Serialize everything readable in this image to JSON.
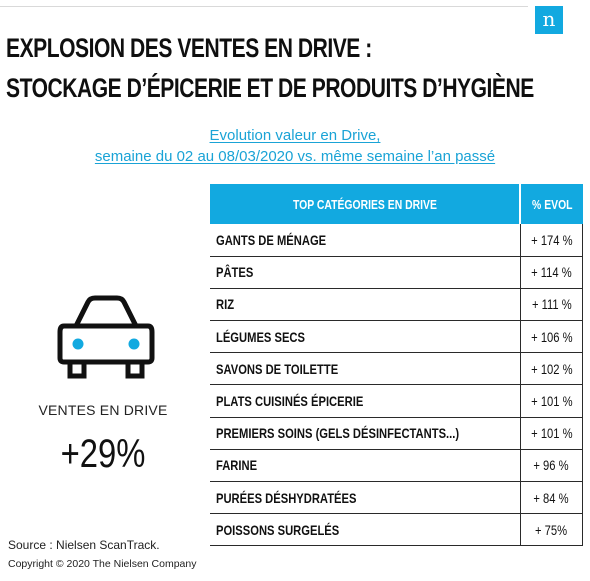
{
  "brand": {
    "logo_letter": "n",
    "accent": "#12a9e0"
  },
  "header": {
    "title_line1": "EXPLOSION DES VENTES EN DRIVE :",
    "title_line2": "STOCKAGE D’ÉPICERIE ET DE PRODUITS D’HYGIÈNE"
  },
  "subtitle": {
    "line1": "Evolution valeur en Drive,",
    "line2": "semaine du 02 au 08/03/2020 vs. même semaine l’an passé"
  },
  "kpi": {
    "icon": "car-icon",
    "label": "VENTES EN DRIVE",
    "value": "+29%"
  },
  "footer": {
    "source": "Source : Nielsen ScanTrack.",
    "copyright": "Copyright © 2020 The Nielsen Company"
  },
  "chart_data": {
    "type": "table",
    "columns": [
      "TOP CATÉGORIES EN DRIVE",
      "% EVOL"
    ],
    "rows": [
      {
        "category": "GANTS DE MÉNAGE",
        "evol": "+ 174 %",
        "value": 174
      },
      {
        "category": "PÂTES",
        "evol": "+ 114 %",
        "value": 114
      },
      {
        "category": "RIZ",
        "evol": "+ 111 %",
        "value": 111
      },
      {
        "category": "LÉGUMES SECS",
        "evol": "+ 106 %",
        "value": 106
      },
      {
        "category": "SAVONS DE TOILETTE",
        "evol": "+ 102 %",
        "value": 102
      },
      {
        "category": "PLATS CUISINÉS ÉPICERIE",
        "evol": "+ 101 %",
        "value": 101
      },
      {
        "category": "PREMIERS SOINS (GELS DÉSINFECTANTS...)",
        "evol": "+ 101 %",
        "value": 101
      },
      {
        "category": "FARINE",
        "evol": "+ 96 %",
        "value": 96
      },
      {
        "category": "PURÉES DÉSHYDRATÉES",
        "evol": "+ 84 %",
        "value": 84
      },
      {
        "category": "POISSONS SURGELÉS",
        "evol": "+ 75%",
        "value": 75
      }
    ]
  }
}
